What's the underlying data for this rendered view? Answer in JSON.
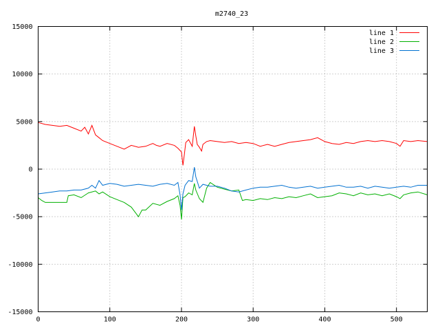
{
  "chart_data": {
    "type": "line",
    "title": "m2740_23",
    "xlim": [
      0,
      543
    ],
    "ylim": [
      -15000,
      15000
    ],
    "xticks": [
      0,
      100,
      200,
      300,
      400,
      500
    ],
    "yticks": [
      -15000,
      -10000,
      -5000,
      0,
      5000,
      10000,
      15000
    ],
    "grid": true,
    "legend_position": "top-right",
    "series": [
      {
        "name": "line 1",
        "color": "#ff0000",
        "points": [
          [
            0,
            4900
          ],
          [
            10,
            4700
          ],
          [
            20,
            4600
          ],
          [
            30,
            4500
          ],
          [
            40,
            4600
          ],
          [
            50,
            4300
          ],
          [
            60,
            4000
          ],
          [
            65,
            4400
          ],
          [
            70,
            3700
          ],
          [
            75,
            4600
          ],
          [
            80,
            3600
          ],
          [
            85,
            3300
          ],
          [
            90,
            3000
          ],
          [
            100,
            2700
          ],
          [
            110,
            2400
          ],
          [
            120,
            2100
          ],
          [
            130,
            2500
          ],
          [
            140,
            2300
          ],
          [
            150,
            2400
          ],
          [
            160,
            2700
          ],
          [
            165,
            2500
          ],
          [
            170,
            2400
          ],
          [
            180,
            2700
          ],
          [
            190,
            2500
          ],
          [
            195,
            2200
          ],
          [
            200,
            1800
          ],
          [
            202,
            400
          ],
          [
            204,
            1500
          ],
          [
            206,
            2800
          ],
          [
            210,
            3100
          ],
          [
            215,
            2400
          ],
          [
            218,
            4500
          ],
          [
            220,
            3500
          ],
          [
            222,
            2600
          ],
          [
            225,
            2300
          ],
          [
            228,
            1900
          ],
          [
            230,
            2600
          ],
          [
            235,
            2900
          ],
          [
            240,
            3000
          ],
          [
            250,
            2900
          ],
          [
            260,
            2800
          ],
          [
            270,
            2900
          ],
          [
            280,
            2700
          ],
          [
            290,
            2800
          ],
          [
            300,
            2700
          ],
          [
            310,
            2400
          ],
          [
            320,
            2600
          ],
          [
            330,
            2400
          ],
          [
            340,
            2600
          ],
          [
            350,
            2800
          ],
          [
            360,
            2900
          ],
          [
            370,
            3000
          ],
          [
            380,
            3100
          ],
          [
            390,
            3300
          ],
          [
            400,
            2900
          ],
          [
            410,
            2700
          ],
          [
            420,
            2600
          ],
          [
            430,
            2800
          ],
          [
            440,
            2700
          ],
          [
            450,
            2900
          ],
          [
            460,
            3000
          ],
          [
            470,
            2900
          ],
          [
            480,
            3000
          ],
          [
            490,
            2900
          ],
          [
            500,
            2700
          ],
          [
            505,
            2400
          ],
          [
            510,
            3000
          ],
          [
            520,
            2900
          ],
          [
            530,
            3000
          ],
          [
            543,
            2900
          ]
        ]
      },
      {
        "name": "line 2",
        "color": "#00b000",
        "points": [
          [
            0,
            -3000
          ],
          [
            5,
            -3300
          ],
          [
            10,
            -3500
          ],
          [
            40,
            -3500
          ],
          [
            42,
            -2800
          ],
          [
            50,
            -2700
          ],
          [
            60,
            -3000
          ],
          [
            70,
            -2500
          ],
          [
            80,
            -2300
          ],
          [
            85,
            -2600
          ],
          [
            90,
            -2400
          ],
          [
            100,
            -2900
          ],
          [
            110,
            -3200
          ],
          [
            120,
            -3500
          ],
          [
            130,
            -4000
          ],
          [
            140,
            -5000
          ],
          [
            145,
            -4300
          ],
          [
            150,
            -4300
          ],
          [
            160,
            -3600
          ],
          [
            170,
            -3800
          ],
          [
            180,
            -3400
          ],
          [
            190,
            -3100
          ],
          [
            195,
            -2800
          ],
          [
            198,
            -3800
          ],
          [
            200,
            -5300
          ],
          [
            202,
            -3000
          ],
          [
            205,
            -2900
          ],
          [
            210,
            -2500
          ],
          [
            215,
            -2700
          ],
          [
            218,
            -1500
          ],
          [
            220,
            -2200
          ],
          [
            225,
            -3100
          ],
          [
            230,
            -3500
          ],
          [
            235,
            -2000
          ],
          [
            240,
            -1400
          ],
          [
            250,
            -1900
          ],
          [
            260,
            -2100
          ],
          [
            270,
            -2300
          ],
          [
            280,
            -2200
          ],
          [
            285,
            -3300
          ],
          [
            290,
            -3200
          ],
          [
            300,
            -3300
          ],
          [
            310,
            -3100
          ],
          [
            320,
            -3200
          ],
          [
            330,
            -3000
          ],
          [
            340,
            -3100
          ],
          [
            350,
            -2900
          ],
          [
            360,
            -3000
          ],
          [
            370,
            -2800
          ],
          [
            380,
            -2600
          ],
          [
            390,
            -3000
          ],
          [
            400,
            -2900
          ],
          [
            410,
            -2800
          ],
          [
            420,
            -2500
          ],
          [
            430,
            -2600
          ],
          [
            440,
            -2800
          ],
          [
            450,
            -2500
          ],
          [
            460,
            -2700
          ],
          [
            470,
            -2600
          ],
          [
            480,
            -2800
          ],
          [
            490,
            -2600
          ],
          [
            500,
            -2900
          ],
          [
            505,
            -3100
          ],
          [
            510,
            -2700
          ],
          [
            520,
            -2500
          ],
          [
            530,
            -2400
          ],
          [
            543,
            -2700
          ]
        ]
      },
      {
        "name": "line 3",
        "color": "#0070d0",
        "points": [
          [
            0,
            -2600
          ],
          [
            10,
            -2500
          ],
          [
            20,
            -2400
          ],
          [
            30,
            -2300
          ],
          [
            40,
            -2300
          ],
          [
            50,
            -2200
          ],
          [
            60,
            -2200
          ],
          [
            70,
            -2000
          ],
          [
            75,
            -1700
          ],
          [
            80,
            -2000
          ],
          [
            85,
            -1200
          ],
          [
            90,
            -1700
          ],
          [
            100,
            -1500
          ],
          [
            110,
            -1600
          ],
          [
            120,
            -1800
          ],
          [
            130,
            -1700
          ],
          [
            140,
            -1600
          ],
          [
            150,
            -1700
          ],
          [
            160,
            -1800
          ],
          [
            170,
            -1600
          ],
          [
            180,
            -1500
          ],
          [
            190,
            -1700
          ],
          [
            195,
            -1400
          ],
          [
            198,
            -2700
          ],
          [
            200,
            -4300
          ],
          [
            202,
            -2600
          ],
          [
            205,
            -1700
          ],
          [
            210,
            -1200
          ],
          [
            215,
            -1300
          ],
          [
            218,
            200
          ],
          [
            220,
            -800
          ],
          [
            225,
            -2000
          ],
          [
            230,
            -1600
          ],
          [
            240,
            -1800
          ],
          [
            250,
            -1800
          ],
          [
            260,
            -2000
          ],
          [
            270,
            -2300
          ],
          [
            280,
            -2400
          ],
          [
            290,
            -2200
          ],
          [
            300,
            -2000
          ],
          [
            310,
            -1900
          ],
          [
            320,
            -1900
          ],
          [
            330,
            -1800
          ],
          [
            340,
            -1700
          ],
          [
            350,
            -1900
          ],
          [
            360,
            -2000
          ],
          [
            370,
            -1900
          ],
          [
            380,
            -1800
          ],
          [
            390,
            -2000
          ],
          [
            400,
            -1900
          ],
          [
            410,
            -1800
          ],
          [
            420,
            -1700
          ],
          [
            430,
            -1900
          ],
          [
            440,
            -1900
          ],
          [
            450,
            -1800
          ],
          [
            460,
            -2000
          ],
          [
            470,
            -1800
          ],
          [
            480,
            -1900
          ],
          [
            490,
            -2000
          ],
          [
            500,
            -1900
          ],
          [
            510,
            -1800
          ],
          [
            520,
            -1900
          ],
          [
            530,
            -1700
          ],
          [
            543,
            -1700
          ]
        ]
      }
    ]
  }
}
